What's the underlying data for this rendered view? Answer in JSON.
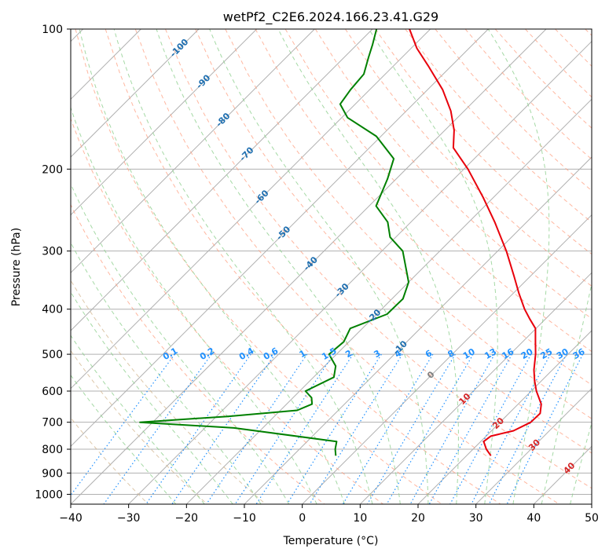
{
  "chart_data": {
    "type": "line",
    "subtype": "skew-t log-p",
    "title": "wetPf2_C2E6.2024.166.23.41.G29",
    "xlabel": "Temperature (°C)",
    "ylabel": "Pressure (hPa)",
    "xlim": [
      -40,
      50
    ],
    "ylim": [
      1050,
      100
    ],
    "y_scale": "log",
    "grid": true,
    "x_ticks": [
      "−40",
      "−30",
      "−20",
      "−10",
      "0",
      "10",
      "20",
      "30",
      "40",
      "50"
    ],
    "x_tick_values": [
      -40,
      -30,
      -20,
      -10,
      0,
      10,
      20,
      30,
      40,
      50
    ],
    "y_ticks": [
      "100",
      "200",
      "300",
      "400",
      "500",
      "600",
      "700",
      "800",
      "900",
      "1000"
    ],
    "y_tick_values": [
      100,
      200,
      300,
      400,
      500,
      600,
      700,
      800,
      900,
      1000
    ],
    "colors": {
      "temperature": "#e8000b",
      "dewpoint": "#008000",
      "isotherm_neg": "#1f6fb0",
      "isotherm_pos": "#d62728",
      "isotherm_zero": "#808080",
      "mixing_ratio": "#1e90ff",
      "dry_adiabat": "#ff9f80",
      "moist_adiabat": "#8fcf8f",
      "grid": "#b0b0b0"
    },
    "isotherm_labels": [
      {
        "text": "-100",
        "value": -100
      },
      {
        "text": "-90",
        "value": -90
      },
      {
        "text": "-80",
        "value": -80
      },
      {
        "text": "-70",
        "value": -70
      },
      {
        "text": "-60",
        "value": -60
      },
      {
        "text": "-50",
        "value": -50
      },
      {
        "text": "-40",
        "value": -40
      },
      {
        "text": "-30",
        "value": -30
      },
      {
        "text": "-20",
        "value": -20
      },
      {
        "text": "-10",
        "value": -10
      },
      {
        "text": "0",
        "value": 0
      },
      {
        "text": "10",
        "value": 10
      },
      {
        "text": "20",
        "value": 20
      },
      {
        "text": "30",
        "value": 30
      },
      {
        "text": "40",
        "value": 40
      }
    ],
    "mixing_ratio_labels": [
      "0.1",
      "0.2",
      "0.4",
      "0.6",
      "1",
      "1.5",
      "2",
      "3",
      "4",
      "6",
      "8",
      "10",
      "13",
      "16",
      "20",
      "25",
      "30",
      "36"
    ],
    "mixing_ratio_values": [
      0.1,
      0.2,
      0.4,
      0.6,
      1,
      1.5,
      2,
      3,
      4,
      6,
      8,
      10,
      13,
      16,
      20,
      25,
      30,
      36
    ],
    "series": [
      {
        "name": "temperature",
        "points": [
          {
            "p": 826,
            "t": 24.2
          },
          {
            "p": 800,
            "t": 22.3
          },
          {
            "p": 770,
            "t": 20.5
          },
          {
            "p": 750,
            "t": 20.8
          },
          {
            "p": 730,
            "t": 23.8
          },
          {
            "p": 700,
            "t": 25.3
          },
          {
            "p": 670,
            "t": 25.4
          },
          {
            "p": 640,
            "t": 24.0
          },
          {
            "p": 600,
            "t": 20.9
          },
          {
            "p": 570,
            "t": 18.8
          },
          {
            "p": 540,
            "t": 16.8
          },
          {
            "p": 500,
            "t": 14.4
          },
          {
            "p": 470,
            "t": 12.2
          },
          {
            "p": 440,
            "t": 9.9
          },
          {
            "p": 420,
            "t": 7.3
          },
          {
            "p": 400,
            "t": 4.7
          },
          {
            "p": 370,
            "t": 1.0
          },
          {
            "p": 340,
            "t": -2.8
          },
          {
            "p": 300,
            "t": -8.5
          },
          {
            "p": 260,
            "t": -15.5
          },
          {
            "p": 230,
            "t": -21.8
          },
          {
            "p": 200,
            "t": -29.3
          },
          {
            "p": 180,
            "t": -35.5
          },
          {
            "p": 165,
            "t": -38.4
          },
          {
            "p": 150,
            "t": -42.3
          },
          {
            "p": 135,
            "t": -47.4
          },
          {
            "p": 120,
            "t": -54.0
          },
          {
            "p": 110,
            "t": -59.0
          },
          {
            "p": 100,
            "t": -63.6
          }
        ]
      },
      {
        "name": "dewpoint",
        "points": [
          {
            "p": 826,
            "t": -2.6
          },
          {
            "p": 800,
            "t": -3.8
          },
          {
            "p": 770,
            "t": -4.9
          },
          {
            "p": 720,
            "t": -25.0
          },
          {
            "p": 700,
            "t": -42.2
          },
          {
            "p": 680,
            "t": -28.0
          },
          {
            "p": 660,
            "t": -17.1
          },
          {
            "p": 640,
            "t": -15.6
          },
          {
            "p": 620,
            "t": -16.8
          },
          {
            "p": 600,
            "t": -19.0
          },
          {
            "p": 560,
            "t": -16.5
          },
          {
            "p": 530,
            "t": -18.1
          },
          {
            "p": 500,
            "t": -21.3
          },
          {
            "p": 470,
            "t": -20.9
          },
          {
            "p": 440,
            "t": -22.1
          },
          {
            "p": 410,
            "t": -18.2
          },
          {
            "p": 380,
            "t": -18.1
          },
          {
            "p": 350,
            "t": -20.0
          },
          {
            "p": 300,
            "t": -26.4
          },
          {
            "p": 280,
            "t": -31.0
          },
          {
            "p": 260,
            "t": -34.0
          },
          {
            "p": 240,
            "t": -38.8
          },
          {
            "p": 210,
            "t": -41.5
          },
          {
            "p": 190,
            "t": -43.9
          },
          {
            "p": 170,
            "t": -50.8
          },
          {
            "p": 155,
            "t": -59.0
          },
          {
            "p": 145,
            "t": -62.6
          },
          {
            "p": 135,
            "t": -63.3
          },
          {
            "p": 125,
            "t": -63.7
          },
          {
            "p": 115,
            "t": -65.8
          },
          {
            "p": 108,
            "t": -67.3
          },
          {
            "p": 100,
            "t": -69.3
          }
        ]
      }
    ]
  }
}
